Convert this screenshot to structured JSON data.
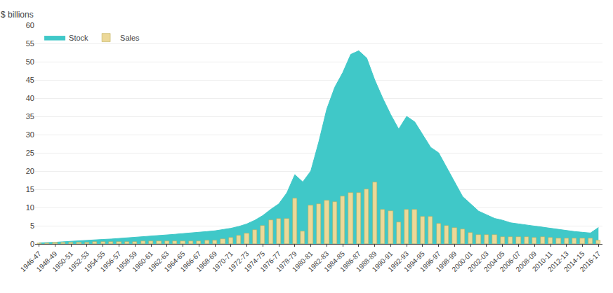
{
  "chart_data": {
    "type": "bar",
    "ylabel": "$ billions",
    "categories": [
      "1946-47",
      null,
      "1948-49",
      null,
      "1950-51",
      null,
      "1952-53",
      null,
      "1954-55",
      null,
      "1956-57",
      null,
      "1958-59",
      null,
      "1960-61",
      null,
      "1962-63",
      null,
      "1964-65",
      null,
      "1966-67",
      null,
      "1968-69",
      null,
      "1970-71",
      null,
      "1972-73",
      null,
      "1974-75",
      null,
      "1976-77",
      null,
      "1978-79",
      null,
      "1980-81",
      null,
      "1982-83",
      null,
      "1984-85",
      null,
      "1986-87",
      null,
      "1988-89",
      null,
      "1990-91",
      null,
      "1992-93",
      null,
      "1994-95",
      null,
      "1996-97",
      null,
      "1998-99",
      null,
      "2000-01",
      null,
      "2002-03",
      null,
      "2004-05",
      null,
      "2006-07",
      null,
      "2008-09",
      null,
      "2010-11",
      null,
      "2012-13",
      null,
      "2014-15",
      null,
      "2016-17"
    ],
    "series": [
      {
        "name": "Stock",
        "type": "area",
        "color": "#40C8C8",
        "values": [
          0.3,
          0.35,
          0.45,
          0.6,
          0.75,
          0.9,
          1.05,
          1.15,
          1.25,
          1.35,
          1.5,
          1.65,
          1.8,
          1.95,
          2.1,
          2.25,
          2.45,
          2.65,
          2.85,
          3.0,
          3.2,
          3.4,
          3.6,
          3.9,
          4.3,
          4.8,
          5.5,
          6.5,
          7.8,
          9.5,
          11.0,
          14.0,
          19.0,
          17.0,
          20.0,
          28.0,
          37.0,
          43.0,
          47.0,
          52.0,
          53.0,
          51.0,
          45.0,
          40.0,
          35.5,
          31.5,
          35.0,
          33.5,
          30.0,
          26.5,
          25.0,
          21.0,
          17.0,
          13.0,
          11.0,
          9.0,
          8.0,
          7.0,
          6.5,
          5.8,
          5.5,
          5.2,
          4.9,
          4.5,
          4.2,
          3.9,
          3.6,
          3.4,
          3.2,
          3.0,
          4.5
        ]
      },
      {
        "name": "Sales",
        "type": "bar",
        "color": "#ECD898",
        "values": [
          0.2,
          0.15,
          0.4,
          0.35,
          0.35,
          0.4,
          0.45,
          0.5,
          0.55,
          0.6,
          0.6,
          0.65,
          0.65,
          0.7,
          0.75,
          0.8,
          0.75,
          0.8,
          0.8,
          0.75,
          0.7,
          0.9,
          1.0,
          1.3,
          1.8,
          2.3,
          2.8,
          3.8,
          5.0,
          6.5,
          7.0,
          7.0,
          12.5,
          3.5,
          10.5,
          11.0,
          12.0,
          11.5,
          13.0,
          14.0,
          14.0,
          15.0,
          17.0,
          9.5,
          9.0,
          6.0,
          9.5,
          9.5,
          7.5,
          7.5,
          5.5,
          5.0,
          4.5,
          4.0,
          3.0,
          2.5,
          2.5,
          2.5,
          2.0,
          2.0,
          2.0,
          2.0,
          1.8,
          2.0,
          1.8,
          1.5,
          1.5,
          1.5,
          1.5,
          1.5,
          1.0
        ]
      }
    ],
    "ylim": [
      0,
      60
    ],
    "yticks": [
      0,
      5,
      10,
      15,
      20,
      25,
      30,
      35,
      40,
      45,
      50,
      55,
      60
    ],
    "grid": true,
    "legend": "upper left"
  }
}
